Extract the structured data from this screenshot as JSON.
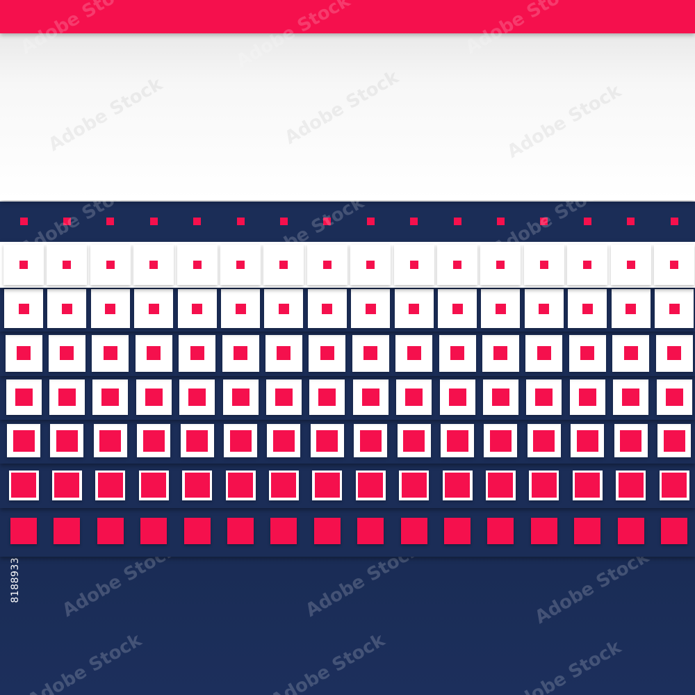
{
  "stock_id": "81889332",
  "watermark_text": "Adobe Stock",
  "colors": {
    "accent_pink": "#f5104d",
    "navy": "#1b2d57",
    "white": "#ffffff"
  }
}
